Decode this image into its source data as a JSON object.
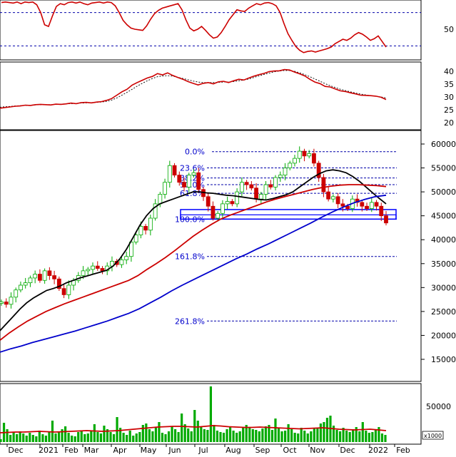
{
  "chart_data": [
    {
      "type": "line",
      "panel": "stochastic",
      "y_ticks": [
        50
      ],
      "ylim": [
        0,
        100
      ],
      "reference_lines": [
        80,
        20
      ],
      "series": [
        {
          "values": [
            98,
            99,
            98,
            97,
            99,
            96,
            99,
            98,
            99,
            94,
            80,
            58,
            55,
            74,
            91,
            96,
            94,
            98,
            99,
            97,
            99,
            96,
            94,
            97,
            98,
            99,
            97,
            99,
            98,
            92,
            80,
            66,
            58,
            52,
            50,
            49,
            48,
            56,
            68,
            78,
            84,
            88,
            90,
            92,
            94,
            96,
            85,
            67,
            52,
            47,
            50,
            55,
            48,
            40,
            34,
            36,
            44,
            55,
            67,
            76,
            85,
            83,
            82,
            88,
            92,
            96,
            94,
            97,
            98,
            96,
            92,
            80,
            60,
            42,
            30,
            19,
            12,
            8,
            10,
            11,
            9,
            11,
            13,
            15,
            18,
            24,
            28,
            32,
            30,
            34,
            40,
            44,
            41,
            36,
            30,
            33,
            38,
            28,
            18
          ]
        }
      ],
      "grid": false
    },
    {
      "type": "line",
      "panel": "rsi",
      "y_ticks": [
        40,
        35,
        30,
        25,
        20
      ],
      "ylim": [
        18,
        42
      ],
      "grid": false,
      "series": [
        {
          "values": [
            25.6,
            25.9,
            26.1,
            26.4,
            26.5,
            26.8,
            26.7,
            27.0,
            27.1,
            27.0,
            26.9,
            27.2,
            27.1,
            27.3,
            27.6,
            27.4,
            27.8,
            27.9,
            27.7,
            28.0,
            28.2,
            28.7,
            29.4,
            30.7,
            32.0,
            33.0,
            34.6,
            35.6,
            36.5,
            37.4,
            38.0,
            39.1,
            38.6,
            39.4,
            38.4,
            37.6,
            36.9,
            36.0,
            35.3,
            34.7,
            35.3,
            35.6,
            35.1,
            35.9,
            36.1,
            35.6,
            36.3,
            36.9,
            36.6,
            37.4,
            38.1,
            38.7,
            39.2,
            39.9,
            40.1,
            40.2,
            40.7,
            40.5,
            39.7,
            39.0,
            38.2,
            36.9,
            35.8,
            35.2,
            34.1,
            33.9,
            33.1,
            32.4,
            32.1,
            31.6,
            31.2,
            30.7,
            30.6,
            30.5,
            30.3,
            29.9,
            29.0
          ]
        },
        {
          "values": [
            26.0,
            26.2,
            26.3,
            26.5,
            26.6,
            26.7,
            26.8,
            26.9,
            27.0,
            27.0,
            27.0,
            27.1,
            27.2,
            27.3,
            27.4,
            27.5,
            27.6,
            27.7,
            27.8,
            27.9,
            28.0,
            28.3,
            28.8,
            29.6,
            30.7,
            31.8,
            33.0,
            34.2,
            35.3,
            36.3,
            37.2,
            37.9,
            38.2,
            38.3,
            38.1,
            37.7,
            37.2,
            36.7,
            36.2,
            35.8,
            35.6,
            35.6,
            35.6,
            35.7,
            35.8,
            35.8,
            36.0,
            36.3,
            36.6,
            37.0,
            37.6,
            38.2,
            38.8,
            39.3,
            39.8,
            40.1,
            40.3,
            40.3,
            40.0,
            39.4,
            38.7,
            37.9,
            37.0,
            36.1,
            35.2,
            34.4,
            33.7,
            33.0,
            32.5,
            32.0,
            31.5,
            31.1,
            30.8,
            30.5,
            30.3,
            30.0,
            29.6
          ]
        }
      ]
    },
    {
      "type": "candlestick",
      "panel": "price",
      "y_ticks": [
        60000,
        55000,
        50000,
        45000,
        40000,
        35000,
        30000,
        25000,
        20000,
        15000
      ],
      "ylim": [
        11500,
        63000
      ],
      "x_ticks": [
        "Dec",
        "2021",
        "Feb",
        "Mar",
        "Apr",
        "May",
        "Jun",
        "Jul",
        "Aug",
        "Sep",
        "Oct",
        "Nov",
        "Dec",
        "2022",
        "Feb"
      ],
      "grid": false,
      "close": [
        27000,
        26500,
        28000,
        29500,
        30500,
        31000,
        32000,
        32800,
        31500,
        33500,
        32500,
        31800,
        29800,
        28500,
        30500,
        31500,
        32500,
        33500,
        33800,
        34500,
        34000,
        33500,
        34500,
        35500,
        34800,
        35800,
        36500,
        39500,
        41000,
        42800,
        42000,
        44500,
        47500,
        49500,
        52000,
        55500,
        53500,
        52000,
        51000,
        53500,
        54000,
        50500,
        49000,
        47000,
        44500,
        45500,
        47500,
        48000,
        47500,
        50000,
        52000,
        51500,
        50800,
        48500,
        49500,
        51500,
        51000,
        53000,
        53500,
        55000,
        56000,
        57000,
        58500,
        57500,
        58000,
        56000,
        53000,
        50000,
        48500,
        49000,
        47500,
        47000,
        46500,
        48500,
        47800,
        47000,
        46500,
        47800,
        47000,
        45000,
        43500
      ],
      "fibonacci_levels": [
        {
          "label": "0.0%",
          "value": 58400
        },
        {
          "label": "23.6%",
          "value": 55000
        },
        {
          "label": "38.2%",
          "value": 52900
        },
        {
          "label": "50.0%",
          "value": 51500
        },
        {
          "label": "61.8%",
          "value": 49700
        },
        {
          "label": "100.0%",
          "value": 44300
        },
        {
          "label": "161.8%",
          "value": 36500
        },
        {
          "label": "261.8%",
          "value": 23000
        }
      ],
      "support_zone": [
        44300,
        46300
      ],
      "moving_averages": [
        {
          "color": "#000000",
          "values": [
            21000,
            22500,
            24000,
            25500,
            26800,
            27800,
            28600,
            29400,
            29800,
            30300,
            31000,
            31500,
            32000,
            32400,
            32800,
            33200,
            33600,
            34500,
            36000,
            38000,
            40500,
            43000,
            45000,
            46500,
            47500,
            48000,
            48500,
            49000,
            49500,
            50000,
            50000,
            49800,
            49700,
            49500,
            49300,
            49200,
            49000,
            48800,
            48600,
            48400,
            48300,
            48600,
            49000,
            49400,
            50000,
            51000,
            52000,
            53000,
            53800,
            54400,
            54600,
            54400,
            54000,
            53200,
            52200,
            51000,
            49800,
            48600,
            47500
          ]
        },
        {
          "color": "#cc0000",
          "values": [
            19000,
            20500,
            21800,
            23000,
            24000,
            25000,
            25800,
            26600,
            27300,
            28000,
            28700,
            29400,
            30100,
            30800,
            31500,
            32500,
            33800,
            35000,
            36300,
            37700,
            39200,
            40700,
            42000,
            43200,
            44300,
            45100,
            45800,
            46500,
            47200,
            47900,
            48500,
            49000,
            49500,
            50000,
            50500,
            50900,
            51200,
            51400,
            51500,
            51500,
            51400,
            51300,
            51100
          ]
        },
        {
          "color": "#0000cc",
          "values": [
            16500,
            17200,
            17800,
            18500,
            19100,
            19700,
            20300,
            20900,
            21600,
            22300,
            23000,
            23800,
            24600,
            25600,
            26800,
            28000,
            29300,
            30500,
            31600,
            32700,
            33800,
            34900,
            36000,
            37000,
            38100,
            39100,
            40200,
            41300,
            42400,
            43500,
            44700,
            45800,
            46800,
            47700,
            48400,
            49000,
            49300
          ]
        }
      ]
    },
    {
      "type": "bar",
      "panel": "volume",
      "y_ticks": [
        50000
      ],
      "unit_label": "x1000",
      "grid": false,
      "values": [
        4000,
        27000,
        18000,
        10000,
        14000,
        11000,
        15000,
        12000,
        9000,
        13000,
        10000,
        8000,
        16000,
        11000,
        9000,
        15000,
        30000,
        12000,
        14000,
        18000,
        22000,
        13000,
        9000,
        8000,
        14000,
        16000,
        11000,
        12000,
        15000,
        25000,
        14000,
        12000,
        23000,
        18000,
        14000,
        11000,
        35000,
        20000,
        13000,
        10000,
        16000,
        9000,
        12000,
        14000,
        24000,
        26000,
        18000,
        15000,
        20000,
        28000,
        13000,
        11000,
        15000,
        22000,
        18000,
        14000,
        40000,
        25000,
        19000,
        15000,
        45000,
        30000,
        22000,
        18000,
        17000,
        78000,
        24000,
        16000,
        14000,
        13000,
        18000,
        22000,
        16000,
        13000,
        15000,
        21000,
        24000,
        20000,
        18000,
        17000,
        15000,
        19000,
        22000,
        24000,
        17000,
        33000,
        20000,
        15000,
        16000,
        25000,
        18000,
        13000,
        12000,
        20000,
        16000,
        12000,
        15000,
        19000,
        20000,
        26000,
        28000,
        34000,
        37000,
        23000,
        17000,
        15000,
        20000,
        16000,
        14000,
        18000,
        21000,
        15000,
        28000,
        16000,
        13000,
        14000,
        17000,
        21000,
        12000,
        10000
      ],
      "series": [
        {
          "values": [
            13000,
            13500,
            14000,
            14000,
            14500,
            15000,
            14500,
            14000,
            14500,
            15000,
            15500,
            16000,
            15500,
            15000,
            15500,
            16000,
            17000,
            18000,
            19000,
            20000,
            21000,
            21500,
            22000,
            22000,
            21500,
            21000,
            22000,
            23000,
            22500,
            21500,
            21000,
            20500,
            20500,
            21000,
            20500,
            20000,
            19500,
            19000,
            18500,
            19000,
            19500,
            20000,
            19000,
            18000,
            17500,
            17000,
            17500,
            18000,
            17000,
            16000
          ]
        }
      ]
    }
  ]
}
